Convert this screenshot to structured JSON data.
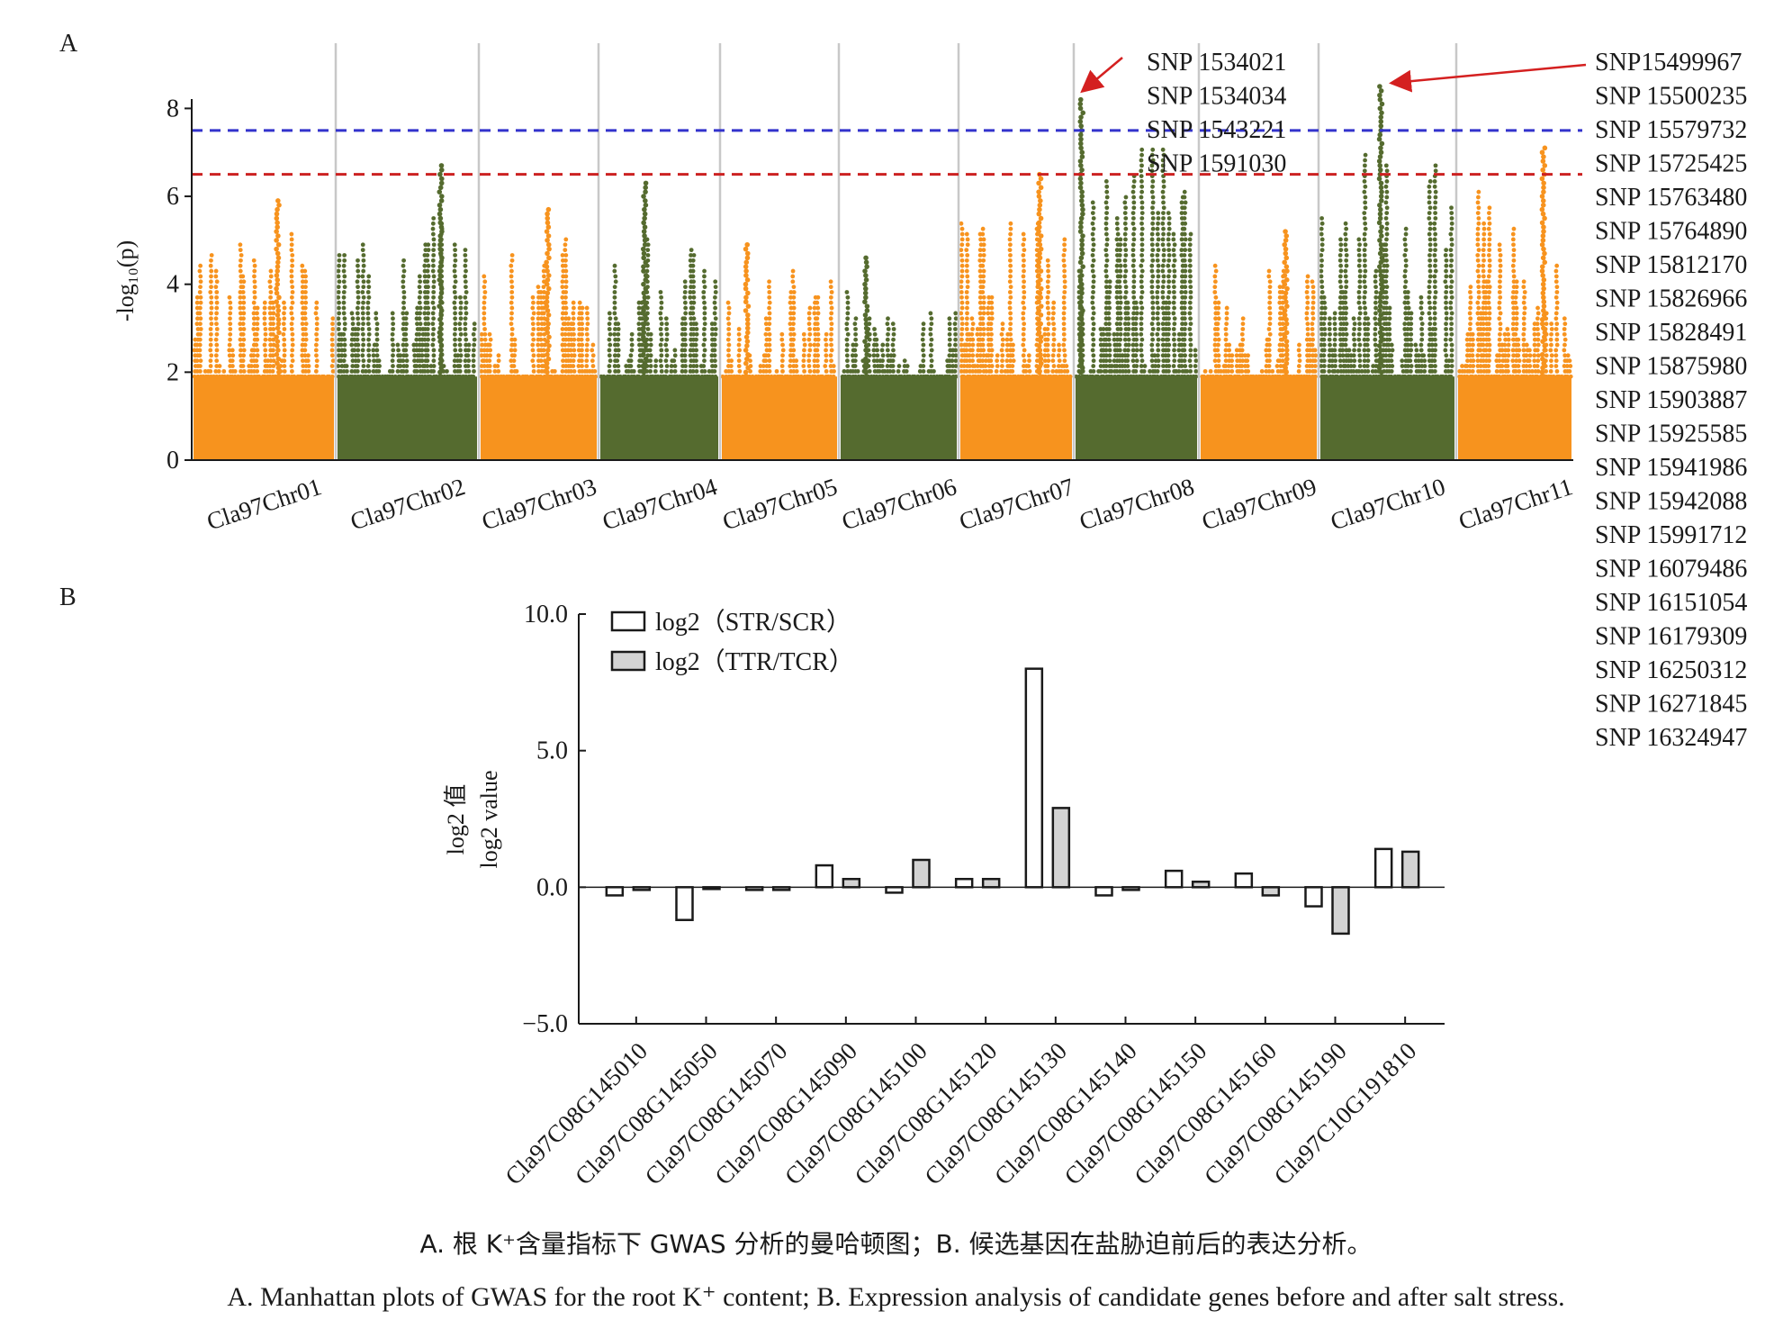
{
  "figure": {
    "panel_a_letter": "A",
    "panel_b_letter": "B",
    "caption_zh": "A. 根 K⁺含量指标下 GWAS 分析的曼哈顿图；B. 候选基因在盐胁迫前后的表达分析。",
    "caption_en": "A. Manhattan plots of GWAS for the root K⁺ content; B. Expression analysis of candidate genes before and after salt stress."
  },
  "chart_data": [
    {
      "type": "scatter",
      "subtype": "manhattan",
      "ylabel": "-log₁₀(p)",
      "ylim": [
        0,
        8.5
      ],
      "yticks": [
        0,
        2,
        4,
        6,
        8
      ],
      "chromosomes": [
        "Cla97Chr01",
        "Cla97Chr02",
        "Cla97Chr03",
        "Cla97Chr04",
        "Cla97Chr05",
        "Cla97Chr06",
        "Cla97Chr07",
        "Cla97Chr08",
        "Cla97Chr09",
        "Cla97Chr10",
        "Cla97Chr11"
      ],
      "chromosome_max": [
        {
          "chr": "Cla97Chr01",
          "max": 5.9
        },
        {
          "chr": "Cla97Chr02",
          "max": 6.7
        },
        {
          "chr": "Cla97Chr03",
          "max": 5.7
        },
        {
          "chr": "Cla97Chr04",
          "max": 6.3
        },
        {
          "chr": "Cla97Chr05",
          "max": 4.9
        },
        {
          "chr": "Cla97Chr06",
          "max": 4.6
        },
        {
          "chr": "Cla97Chr07",
          "max": 6.5
        },
        {
          "chr": "Cla97Chr08",
          "max": 8.2
        },
        {
          "chr": "Cla97Chr09",
          "max": 5.2
        },
        {
          "chr": "Cla97Chr10",
          "max": 8.5
        },
        {
          "chr": "Cla97Chr11",
          "max": 7.1
        }
      ],
      "colors": {
        "odd": "#f7931e",
        "even": "#556b2f"
      },
      "thresholds": [
        {
          "value": 7.5,
          "color": "#3333cc",
          "style": "dashed"
        },
        {
          "value": 6.5,
          "color": "#cc2222",
          "style": "dashed"
        }
      ],
      "annotations": [
        {
          "chr": "Cla97Chr08",
          "snps": [
            "SNP 1534021",
            "SNP 1534034",
            "SNP 1543221",
            "SNP 1591030"
          ]
        },
        {
          "chr": "Cla97Chr10",
          "snps": [
            "SNP15499967",
            "SNP 15500235",
            "SNP 15579732",
            "SNP 15725425",
            "SNP 15763480",
            "SNP 15764890",
            "SNP 15812170",
            "SNP 15826966",
            "SNP 15828491",
            "SNP 15875980",
            "SNP 15903887",
            "SNP 15925585",
            "SNP 15941986",
            "SNP 15942088",
            "SNP 15991712",
            "SNP 16079486",
            "SNP 16151054",
            "SNP 16179309",
            "SNP 16250312",
            "SNP 16271845",
            "SNP 16324947"
          ]
        }
      ],
      "annotation_arrow_color": "#d42020"
    },
    {
      "type": "bar",
      "ylabel_zh": "log2 值",
      "ylabel": "log2 value",
      "ylim": [
        -5.0,
        10.0
      ],
      "yticks": [
        "-5.0",
        "0.0",
        "5.0",
        "10.0"
      ],
      "categories": [
        "Cla97C08G145010",
        "Cla97C08G145050",
        "Cla97C08G145070",
        "Cla97C08G145090",
        "Cla97C08G145100",
        "Cla97C08G145120",
        "Cla97C08G145130",
        "Cla97C08G145140",
        "Cla97C08G145150",
        "Cla97C08G145160",
        "Cla97C08G145190",
        "Cla97C10G191810"
      ],
      "series": [
        {
          "name": "log2（STR/SCR）",
          "color": "#ffffff",
          "values": [
            -0.3,
            -1.2,
            -0.1,
            0.8,
            -0.2,
            0.3,
            8.0,
            -0.3,
            0.6,
            0.5,
            -0.7,
            1.4
          ]
        },
        {
          "name": "log2（TTR/TCR）",
          "color": "#d3d3d3",
          "values": [
            -0.1,
            0.0,
            -0.1,
            0.3,
            1.0,
            0.3,
            2.9,
            -0.1,
            0.2,
            -0.3,
            -1.7,
            1.3
          ]
        }
      ],
      "legend_position": "top-left"
    }
  ]
}
